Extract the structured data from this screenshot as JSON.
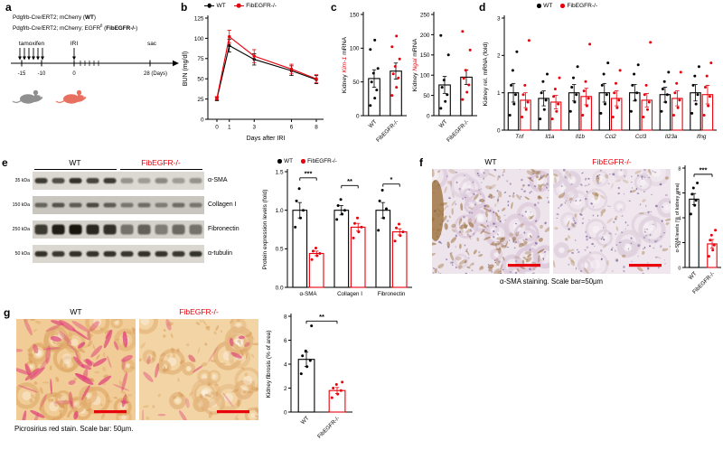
{
  "colors": {
    "wt": "#000000",
    "ko": "#e8000b"
  },
  "panels": {
    "a": {
      "label": "a",
      "genotype_wt": {
        "pre": "Pdgfrb-Cre/ERT2; mCherry (",
        "bold": "WT",
        "post": ")"
      },
      "genotype_ko": {
        "pre": "Pdgfrb-Cre/ERT2; mCherry; EGFR",
        "sup": "fl",
        "mid": " (",
        "bold": "FibEGFR-/-",
        "post": ")"
      },
      "tamoxifen_label": "tamoxifen",
      "iri_label": "IRI",
      "sac_label": "sac",
      "tick_labels": [
        "-15",
        "-10",
        "0",
        "28 (Days)"
      ],
      "mouse_wt_color": "#8f8f8f",
      "mouse_ko_color": "#e87060"
    },
    "b": {
      "label": "b",
      "legend": [
        {
          "name": "WT",
          "color": "#000000"
        },
        {
          "name": "FibEGFR-/-",
          "color": "#e8000b"
        }
      ]
    },
    "c": {
      "label": "c"
    },
    "d": {
      "label": "d",
      "legend": [
        {
          "name": "WT",
          "color": "#000000"
        },
        {
          "name": "FibEGFR-/-",
          "color": "#e8000b"
        }
      ]
    },
    "e": {
      "label": "e",
      "group_wt": "WT",
      "group_ko": "FibEGFR-/-",
      "legend": [
        {
          "name": "WT",
          "color": "#000000"
        },
        {
          "name": "FibEGFR-/-",
          "color": "#e8000b"
        }
      ],
      "kda_labels": [
        "35 kDa",
        "150 kDa",
        "250 kDa",
        "50 kDa"
      ],
      "band_labels": [
        "α-SMA",
        "Collagen I",
        "Fibronectin",
        "α-tubulin"
      ]
    },
    "f": {
      "label": "f",
      "img_wt": "WT",
      "img_ko": "FibEGFR-/-",
      "caption": "α-SMA staining. Scale bar=50µm"
    },
    "g": {
      "label": "g",
      "img_wt": "WT",
      "img_ko": "FibEGFR-/-",
      "caption": "Picrosirius red stain. Scale bar: 50µm."
    }
  },
  "chart_data": [
    {
      "id": "bun",
      "type": "line",
      "xlabel": "Days after IRI",
      "ylabel": "BUN (mg/dl)",
      "ylabel_size": 7,
      "x": [
        0,
        1,
        3,
        6,
        8
      ],
      "xticklabels": [
        "0",
        "1",
        "3",
        "6",
        "8"
      ],
      "ylim": [
        0,
        125
      ],
      "yticks": [
        0,
        25,
        50,
        75,
        100,
        125
      ],
      "margins": {
        "l": 30,
        "r": 6,
        "t": 8,
        "b": 26
      },
      "legend_position": "top",
      "series": [
        {
          "name": "WT",
          "color": "#000000",
          "values": [
            25,
            91,
            74,
            60,
            49
          ],
          "errors": [
            2,
            8,
            7,
            6,
            5
          ]
        },
        {
          "name": "FibEGFR-/-",
          "color": "#e8000b",
          "values": [
            26,
            102,
            78,
            62,
            50
          ],
          "errors": [
            2,
            8,
            8,
            6,
            5
          ]
        }
      ]
    },
    {
      "id": "kim1",
      "type": "bar",
      "ylabel_rich": [
        {
          "t": "Kidney "
        },
        {
          "t": "Kim-1",
          "color": "#e8000b",
          "italic": true
        },
        {
          "t": " mRNA"
        }
      ],
      "ylabel_size": 6.8,
      "ylim": [
        0,
        150
      ],
      "yticks": [
        0,
        50,
        100,
        150
      ],
      "margins": {
        "l": 26,
        "r": 2,
        "t": 10,
        "b": 44
      },
      "categories": [
        "WT",
        "FibEGFR-/-"
      ],
      "rotate_xticks": true,
      "bar_colors": [
        "#000000",
        "#000000"
      ],
      "dot_colors": [
        "#000000",
        "#e8000b"
      ],
      "values": [
        55,
        66
      ],
      "errors": [
        13,
        12
      ],
      "points": [
        [
          15,
          26,
          38,
          50,
          63,
          70,
          98,
          112
        ],
        [
          30,
          42,
          56,
          62,
          73,
          84,
          102,
          118
        ]
      ]
    },
    {
      "id": "ngal",
      "type": "bar",
      "ylabel_rich": [
        {
          "t": "Kidney "
        },
        {
          "t": "Ngal",
          "color": "#e8000b",
          "italic": true
        },
        {
          "t": " mRNA"
        }
      ],
      "ylabel_size": 6.8,
      "ylim": [
        0,
        250
      ],
      "yticks": [
        0,
        50,
        100,
        150,
        200,
        250
      ],
      "margins": {
        "l": 26,
        "r": 2,
        "t": 10,
        "b": 44
      },
      "categories": [
        "WT",
        "FibEGFR-/-"
      ],
      "rotate_xticks": true,
      "bar_colors": [
        "#000000",
        "#000000"
      ],
      "dot_colors": [
        "#000000",
        "#e8000b"
      ],
      "values": [
        76,
        95
      ],
      "errors": [
        21,
        18
      ],
      "points": [
        [
          18,
          35,
          52,
          70,
          88,
          150,
          198
        ],
        [
          40,
          58,
          76,
          92,
          112,
          162,
          208
        ]
      ]
    },
    {
      "id": "genes",
      "type": "bar",
      "ylabel": "Kidney rel. mRNA (fold)",
      "ylabel_size": 6.8,
      "ylim": [
        0,
        3
      ],
      "yticks": [
        0,
        1,
        2,
        3
      ],
      "margins": {
        "l": 26,
        "r": 3,
        "t": 8,
        "b": 16
      },
      "categories": [
        "Tnf",
        "Il1a",
        "Il1b",
        "Ccl2",
        "Ccl3",
        "Il23a",
        "Ifng"
      ],
      "italic_xticks": true,
      "legend_position": "top",
      "series": [
        {
          "name": "WT",
          "color": "#000000",
          "values": [
            1.0,
            0.85,
            1.0,
            1.0,
            1.0,
            0.95,
            1.0
          ],
          "errors": [
            0.25,
            0.2,
            0.22,
            0.25,
            0.22,
            0.2,
            0.22
          ],
          "points": [
            [
              0.4,
              0.7,
              0.95,
              1.2,
              1.6,
              2.1
            ],
            [
              0.3,
              0.55,
              0.8,
              1.0,
              1.3,
              1.5
            ],
            [
              0.5,
              0.75,
              0.95,
              1.15,
              1.4,
              1.7
            ],
            [
              0.45,
              0.7,
              0.95,
              1.2,
              1.5,
              1.8
            ],
            [
              0.5,
              0.8,
              1.0,
              1.2,
              1.5,
              1.75
            ],
            [
              0.5,
              0.75,
              0.95,
              1.1,
              1.3,
              1.55
            ],
            [
              0.45,
              0.7,
              0.95,
              1.2,
              1.45,
              1.7
            ]
          ]
        },
        {
          "name": "FibEGFR-/-",
          "color": "#e8000b",
          "values": [
            0.8,
            0.75,
            0.9,
            0.85,
            0.8,
            0.85,
            0.95
          ],
          "errors": [
            0.2,
            0.18,
            0.22,
            0.2,
            0.18,
            0.2,
            0.25
          ],
          "points": [
            [
              0.35,
              0.55,
              0.75,
              0.95,
              1.2,
              2.4
            ],
            [
              0.3,
              0.5,
              0.7,
              0.9,
              1.1,
              1.4
            ],
            [
              0.4,
              0.65,
              0.85,
              1.05,
              1.3,
              2.3
            ],
            [
              0.35,
              0.6,
              0.8,
              1.0,
              1.25,
              1.6
            ],
            [
              0.35,
              0.55,
              0.75,
              0.95,
              1.2,
              2.35
            ],
            [
              0.4,
              0.6,
              0.8,
              1.0,
              1.25,
              1.55
            ],
            [
              0.4,
              0.65,
              0.9,
              1.15,
              1.45,
              1.8
            ]
          ]
        }
      ]
    },
    {
      "id": "protein",
      "type": "bar",
      "ylabel": "Protein expression levels (fold)",
      "ylabel_size": 6.5,
      "ylim": [
        0,
        1.5
      ],
      "yticks": [
        0,
        0.5,
        1,
        1.5
      ],
      "ytick_dec": 1,
      "margins": {
        "l": 30,
        "r": 4,
        "t": 8,
        "b": 16
      },
      "categories": [
        "α-SMA",
        "Collagen I",
        "Fibronectin"
      ],
      "legend_position": "top",
      "series": [
        {
          "name": "WT",
          "color": "#000000",
          "values": [
            1,
            1,
            1
          ],
          "errors": [
            0.1,
            0.06,
            0.1
          ],
          "points": [
            [
              0.78,
              0.9,
              1.0,
              1.12,
              1.28
            ],
            [
              0.88,
              0.95,
              1.0,
              1.06,
              1.14
            ],
            [
              0.74,
              0.9,
              1.02,
              1.12,
              1.26
            ]
          ]
        },
        {
          "name": "FibEGFR-/-",
          "color": "#e8000b",
          "values": [
            0.44,
            0.78,
            0.72
          ],
          "errors": [
            0.03,
            0.05,
            0.04
          ],
          "points": [
            [
              0.36,
              0.41,
              0.44,
              0.47,
              0.51
            ],
            [
              0.64,
              0.72,
              0.78,
              0.83,
              0.9
            ],
            [
              0.6,
              0.67,
              0.72,
              0.77,
              0.82
            ]
          ]
        }
      ],
      "sig": [
        {
          "cat": 0,
          "label": "***",
          "y": 1.42
        },
        {
          "cat": 1,
          "label": "**",
          "y": 1.32
        },
        {
          "cat": 2,
          "label": "*",
          "y": 1.34
        }
      ]
    },
    {
      "id": "asma",
      "type": "bar",
      "ylabel": "α-SMA levels (% of kidney area)",
      "ylabel_size": 5.4,
      "tick_size": 5.6,
      "ylim": [
        0,
        8
      ],
      "yticks": [
        0,
        2,
        4,
        6,
        8
      ],
      "margins": {
        "l": 14,
        "r": 2,
        "t": 10,
        "b": 40
      },
      "categories": [
        "WT",
        "FibEGFR-/-"
      ],
      "rotate_xticks": true,
      "bar_colors": [
        "#000000",
        "#e8000b"
      ],
      "dot_colors": [
        "#000000",
        "#e8000b"
      ],
      "values": [
        5.5,
        1.9
      ],
      "errors": [
        0.45,
        0.35
      ],
      "points": [
        [
          4.3,
          5.0,
          5.4,
          5.9,
          6.4,
          6.8
        ],
        [
          0.9,
          1.4,
          1.8,
          2.2,
          2.6,
          3.0
        ]
      ],
      "sig": [
        {
          "cats": [
            0,
            1
          ],
          "label": "***",
          "y": 7.5
        }
      ]
    },
    {
      "id": "fibrosis",
      "type": "bar",
      "ylabel": "Kidney fibrosis (% of area)",
      "ylabel_size": 6.4,
      "ylim": [
        0,
        8
      ],
      "yticks": [
        0,
        2,
        4,
        6,
        8
      ],
      "margins": {
        "l": 30,
        "r": 6,
        "t": 10,
        "b": 40
      },
      "categories": [
        "WT",
        "FibEGFR-/-"
      ],
      "rotate_xticks": true,
      "bar_colors": [
        "#000000",
        "#e8000b"
      ],
      "dot_colors": [
        "#000000",
        "#e8000b"
      ],
      "values": [
        4.4,
        1.8
      ],
      "errors": [
        0.6,
        0.25
      ],
      "points": [
        [
          3.2,
          3.8,
          4.3,
          4.7,
          5.1,
          7.2
        ],
        [
          1.2,
          1.5,
          1.8,
          2.0,
          2.3,
          2.5
        ]
      ],
      "sig": [
        {
          "cats": [
            0,
            1
          ],
          "label": "**",
          "y": 7.6
        }
      ]
    }
  ],
  "blots": {
    "rows": [
      {
        "kda": "35 kDa",
        "protein": "α-SMA",
        "bg": "#dcd8d2",
        "band_h": 6,
        "intensities": [
          0.8,
          0.7,
          0.85,
          0.75,
          0.8,
          0.35,
          0.3,
          0.4,
          0.3,
          0.35
        ]
      },
      {
        "kda": "150 kDa",
        "protein": "Collagen I",
        "bg": "#c9c5bf",
        "band_h": 5,
        "intensities": [
          0.55,
          0.65,
          0.6,
          0.7,
          0.6,
          0.45,
          0.5,
          0.42,
          0.5,
          0.45
        ]
      },
      {
        "kda": "250 kDa",
        "protein": "Fibronectin",
        "bg": "#d5d1cb",
        "band_h": 11,
        "intensities": [
          0.8,
          0.95,
          1.0,
          0.9,
          0.85,
          0.5,
          0.6,
          0.45,
          0.55,
          0.5
        ]
      },
      {
        "kda": "50 kDa",
        "protein": "α-tubulin",
        "bg": "#dad6d0",
        "band_h": 6,
        "intensities": [
          0.85,
          0.82,
          0.86,
          0.84,
          0.85,
          0.83,
          0.85,
          0.84,
          0.82,
          0.85
        ]
      }
    ]
  },
  "histology": {
    "f_wt": {
      "seed": 7,
      "bg": "#eee4ec",
      "rings": {
        "color": "#dcc9da",
        "n": 24
      },
      "layers": [
        {
          "name": "brown-stain",
          "color": "#96682f",
          "n": 140,
          "rx": 3.2,
          "ry": 1.5,
          "o0": 0.2,
          "o1": 0.6
        },
        {
          "name": "nuclei",
          "color": "#6e5590",
          "n": 170,
          "rx": 1.0,
          "ry": 1.0,
          "o0": 0.3,
          "o1": 0.75
        }
      ],
      "edge": true,
      "scalebar_color": "#e8000b"
    },
    "f_ko": {
      "seed": 13,
      "bg": "#f0e7ee",
      "rings": {
        "color": "#ded0dd",
        "n": 24
      },
      "layers": [
        {
          "name": "brown-stain",
          "color": "#a0763c",
          "n": 50,
          "rx": 3.0,
          "ry": 1.4,
          "o0": 0.18,
          "o1": 0.5
        },
        {
          "name": "nuclei",
          "color": "#6e5590",
          "n": 160,
          "rx": 1.0,
          "ry": 1.0,
          "o0": 0.3,
          "o1": 0.7
        }
      ],
      "scalebar_color": "#e8000b"
    },
    "g_wt": {
      "seed": 21,
      "bg": "#f1cc96",
      "rings": {
        "color": "#e0ac6c",
        "n": 22
      },
      "layers": [
        {
          "name": "collagen-fibers",
          "color": "#e0417c",
          "n": 55,
          "rx": 8,
          "ry": 2,
          "o0": 0.3,
          "o1": 0.8
        },
        {
          "name": "speckle",
          "color": "#d5954f",
          "n": 80,
          "rx": 2.8,
          "ry": 1.4,
          "o0": 0.25,
          "o1": 0.55
        }
      ],
      "scalebar_color": "#e8000b"
    },
    "g_ko": {
      "seed": 33,
      "bg": "#f3d5a5",
      "rings": {
        "color": "#e4b67e",
        "n": 22
      },
      "layers": [
        {
          "name": "collagen-fibers",
          "color": "#e0417c",
          "n": 16,
          "rx": 7,
          "ry": 1.8,
          "o0": 0.25,
          "o1": 0.7
        },
        {
          "name": "speckle",
          "color": "#d5954f",
          "n": 80,
          "rx": 2.8,
          "ry": 1.4,
          "o0": 0.25,
          "o1": 0.5
        }
      ],
      "scalebar_color": "#e8000b"
    }
  }
}
